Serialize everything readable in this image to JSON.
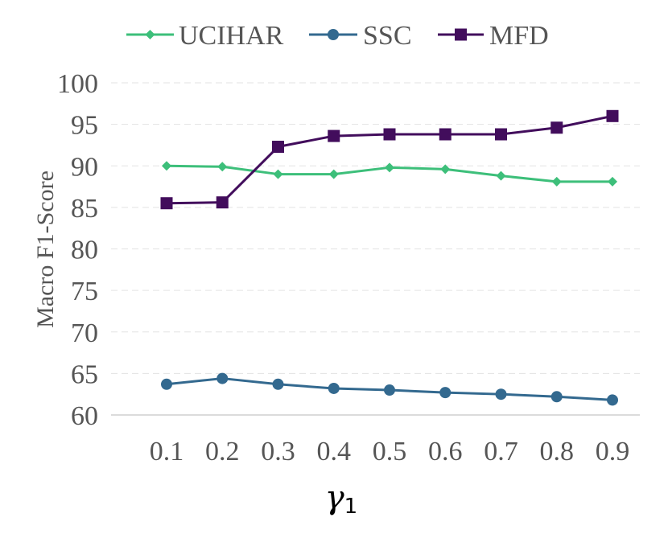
{
  "chart_data": {
    "type": "line",
    "title": "",
    "xlabel_main": "γ",
    "xlabel_sub": "1",
    "ylabel": "Macro F1-Score",
    "x": [
      "0.1",
      "0.2",
      "0.3",
      "0.4",
      "0.5",
      "0.6",
      "0.7",
      "0.8",
      "0.9"
    ],
    "ylim": [
      60,
      100
    ],
    "yticks": [
      "60",
      "65",
      "70",
      "75",
      "80",
      "85",
      "90",
      "95",
      "100"
    ],
    "grid": true,
    "legend_position": "top",
    "series": [
      {
        "name": "UCIHAR",
        "color": "#3dbf7a",
        "marker": "diamond",
        "values": [
          90.0,
          89.9,
          89.0,
          89.0,
          89.8,
          89.6,
          88.8,
          88.1,
          88.1
        ]
      },
      {
        "name": "SSC",
        "color": "#33698f",
        "marker": "circle",
        "values": [
          63.7,
          64.4,
          63.7,
          63.2,
          63.0,
          62.7,
          62.5,
          62.2,
          61.8
        ]
      },
      {
        "name": "MFD",
        "color": "#420d5c",
        "marker": "square",
        "values": [
          85.5,
          85.6,
          92.3,
          93.6,
          93.8,
          93.8,
          93.8,
          94.6,
          96.0
        ]
      }
    ]
  }
}
